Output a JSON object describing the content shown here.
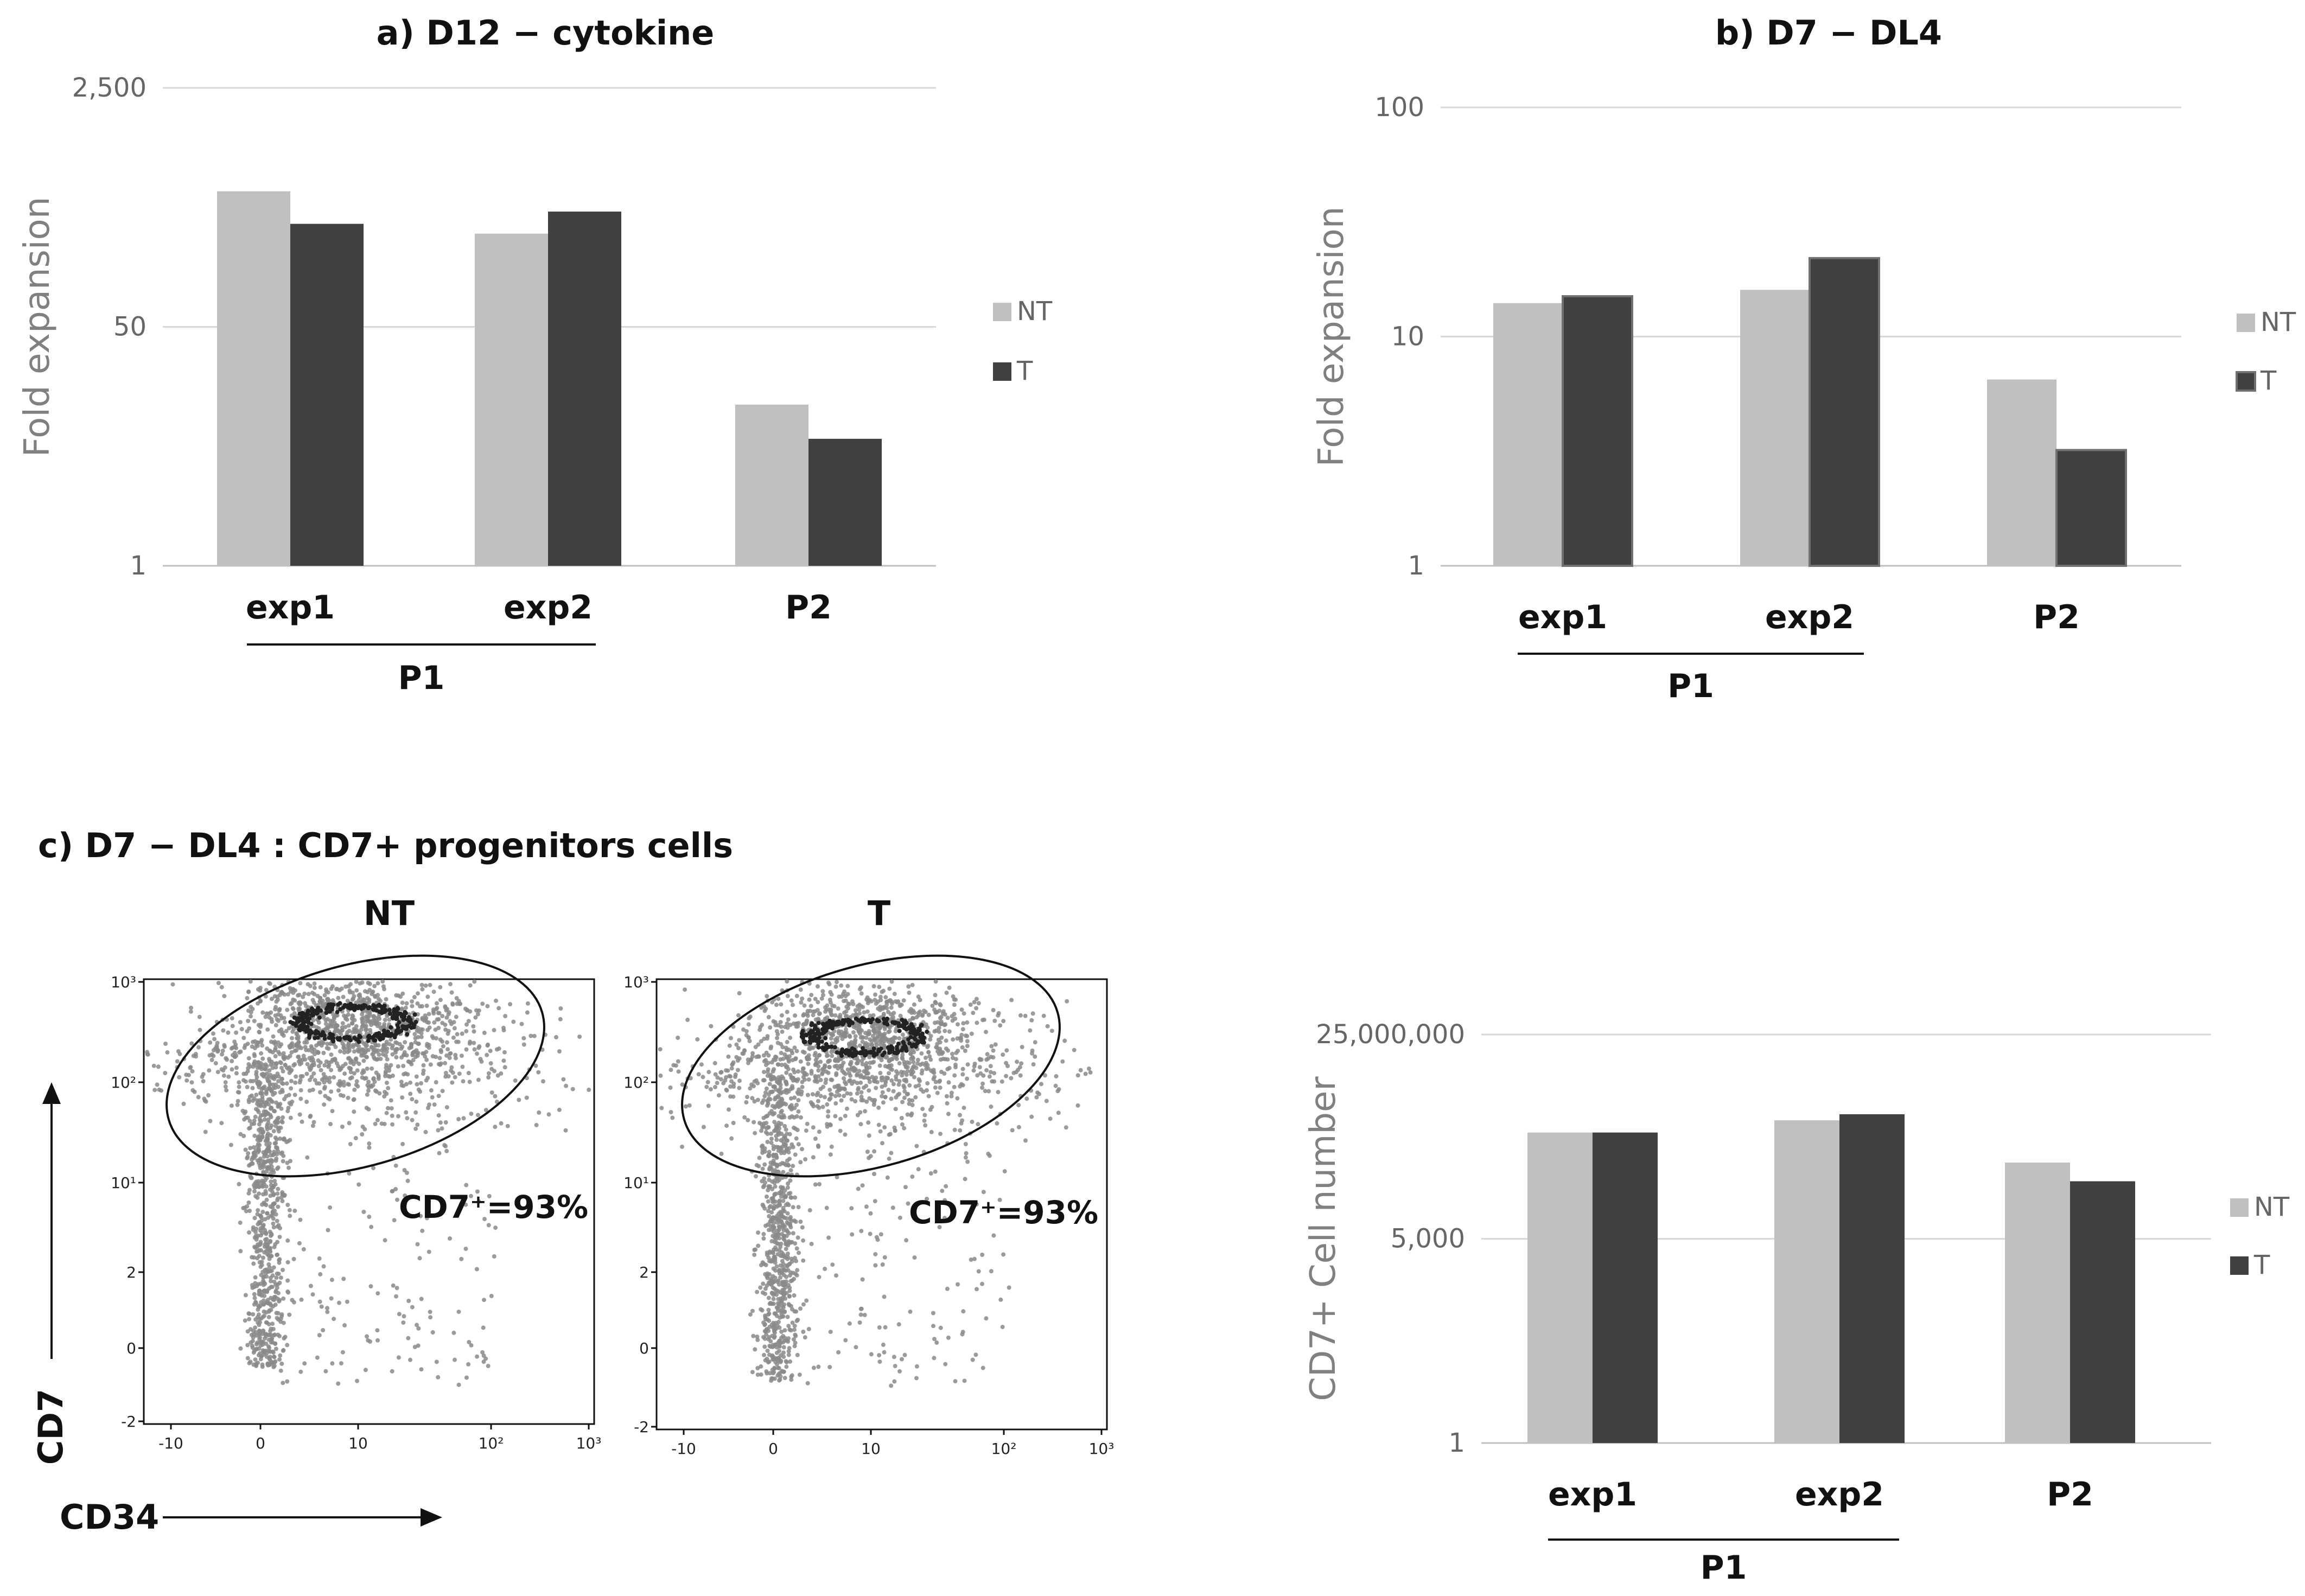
{
  "chart_data": [
    {
      "id": "a",
      "type": "bar",
      "title": "a) D12 − cytokine",
      "ylabel": "Fold expansion",
      "xlabel": "",
      "yscale": "log",
      "ylim": [
        1,
        2500
      ],
      "yticks": [
        {
          "value": 1,
          "label": "1"
        },
        {
          "value": 50,
          "label": "50"
        },
        {
          "value": 2500,
          "label": "2,500"
        }
      ],
      "categories": [
        "exp1",
        "exp2",
        "P2"
      ],
      "group_label": "P1",
      "group_members": [
        "exp1",
        "exp2"
      ],
      "series": [
        {
          "name": "NT",
          "color": "#c0c0c0",
          "values": [
            460,
            230,
            14
          ]
        },
        {
          "name": "T",
          "color": "#404040",
          "values": [
            270,
            330,
            8
          ]
        }
      ]
    },
    {
      "id": "b",
      "type": "bar",
      "title": "b) D7 − DL4",
      "ylabel": "Fold expansion",
      "xlabel": "",
      "yscale": "log",
      "ylim": [
        1,
        100
      ],
      "yticks": [
        {
          "value": 1,
          "label": "1"
        },
        {
          "value": 10,
          "label": "10"
        },
        {
          "value": 100,
          "label": "100"
        }
      ],
      "categories": [
        "exp1",
        "exp2",
        "P2"
      ],
      "group_label": "P1",
      "group_members": [
        "exp1",
        "exp2"
      ],
      "series": [
        {
          "name": "NT",
          "color": "#c0c0c0",
          "values": [
            14,
            16,
            6.5
          ]
        },
        {
          "name": "T",
          "color": "#404040",
          "values": [
            15,
            22,
            3.2
          ]
        }
      ]
    },
    {
      "id": "d",
      "type": "bar",
      "title": "",
      "ylabel": "CD7+ Cell number",
      "xlabel": "",
      "yscale": "log",
      "ylim": [
        1,
        25000000
      ],
      "yticks": [
        {
          "value": 1,
          "label": "1"
        },
        {
          "value": 5000,
          "label": "5,000"
        },
        {
          "value": 25000000,
          "label": "25,000,000"
        }
      ],
      "categories": [
        "exp1",
        "exp2",
        "P2"
      ],
      "group_label": "P1",
      "group_members": [
        "exp1",
        "exp2"
      ],
      "series": [
        {
          "name": "NT",
          "color": "#c0c0c0",
          "values": [
            420000,
            700000,
            120000
          ]
        },
        {
          "name": "T",
          "color": "#404040",
          "values": [
            420000,
            900000,
            55000
          ]
        }
      ]
    }
  ],
  "panel_c": {
    "title": "c) D7 − DL4 : CD7+ progenitors cells",
    "x_axis_label": "CD34",
    "y_axis_label": "CD7",
    "x_tick_labels": [
      "-10",
      "0",
      "10",
      "10²",
      "10³"
    ],
    "y_tick_labels": [
      "10³",
      "10²",
      "10¹",
      "2",
      "0",
      "-2"
    ],
    "plots": [
      {
        "title": "NT",
        "gate_label": "CD7⁺=93%",
        "gate_percent": 93
      },
      {
        "title": "T",
        "gate_label": "CD7⁺=93%",
        "gate_percent": 93
      }
    ]
  },
  "colors": {
    "nt": "#c0c0c0",
    "t": "#404040",
    "grid": "#d9d9d9",
    "axis": "#bfbfbf",
    "dot": "#8a8a8a"
  }
}
